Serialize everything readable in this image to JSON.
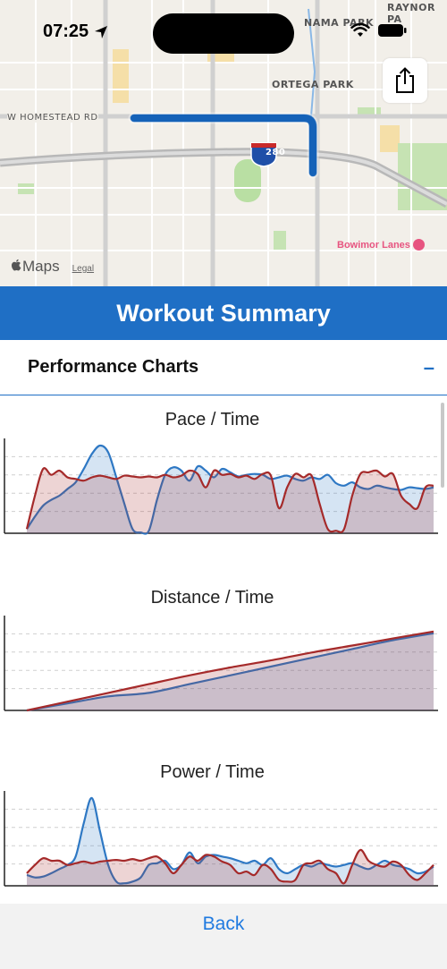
{
  "status_bar": {
    "time": "07:25"
  },
  "map": {
    "labels": {
      "raynor": "RAYNOR PA",
      "nama": "NAMA PARK",
      "ortega": "ORTEGA PARK",
      "homestead": "W HOMESTEAD RD",
      "shield": "280",
      "bowling": "Bowimor Lanes",
      "attribution": "Maps",
      "legal": "Legal"
    }
  },
  "header": {
    "title": "Workout Summary"
  },
  "section": {
    "title": "Performance Charts",
    "toggle": "–"
  },
  "colors": {
    "accent": "#1f6fc5",
    "series_blue": "#2e78c4",
    "series_red": "#a52a2a"
  },
  "footer": {
    "back_label": "Back"
  },
  "chart_data": [
    {
      "type": "area",
      "title": "Pace / Time",
      "x": [
        0,
        2,
        4,
        6,
        8,
        10,
        12,
        14,
        16,
        18,
        20,
        22,
        24,
        26,
        28,
        30,
        32,
        34,
        36,
        38,
        40,
        42,
        44,
        46,
        48,
        50,
        52,
        54,
        56,
        58,
        60,
        62,
        64,
        66,
        68,
        70,
        72,
        74,
        76,
        78,
        80,
        82,
        84,
        86,
        88,
        90,
        92,
        94,
        96,
        98,
        100
      ],
      "series": [
        {
          "color": "#2e78c4",
          "values": [
            0,
            15,
            28,
            35,
            40,
            48,
            56,
            72,
            90,
            100,
            92,
            62,
            30,
            0,
            -4,
            -2,
            35,
            65,
            74,
            70,
            58,
            75,
            70,
            62,
            72,
            68,
            63,
            65,
            66,
            65,
            60,
            62,
            64,
            60,
            58,
            62,
            60,
            65,
            55,
            52,
            56,
            50,
            48,
            52,
            50,
            48,
            47,
            50,
            49,
            48,
            50
          ]
        },
        {
          "color": "#a52a2a",
          "values": [
            0,
            40,
            72,
            65,
            70,
            62,
            60,
            58,
            62,
            64,
            62,
            60,
            64,
            63,
            62,
            63,
            62,
            65,
            62,
            64,
            70,
            66,
            50,
            70,
            65,
            66,
            62,
            64,
            60,
            66,
            64,
            25,
            50,
            66,
            62,
            64,
            30,
            0,
            -2,
            0,
            40,
            66,
            68,
            70,
            63,
            66,
            40,
            30,
            25,
            50,
            52
          ]
        }
      ],
      "ylim": [
        -5,
        100
      ]
    },
    {
      "type": "area",
      "title": "Distance / Time",
      "x": [
        0,
        10,
        20,
        30,
        40,
        50,
        60,
        70,
        80,
        90,
        100
      ],
      "series": [
        {
          "color": "#2e78c4",
          "values": [
            0,
            8,
            16,
            20,
            30,
            40,
            50,
            60,
            70,
            80,
            88
          ]
        },
        {
          "color": "#a52a2a",
          "values": [
            0,
            10,
            20,
            30,
            40,
            49,
            57,
            66,
            74,
            82,
            90
          ]
        }
      ],
      "ylim": [
        0,
        100
      ]
    },
    {
      "type": "area",
      "title": "Power / Time",
      "x": [
        0,
        2,
        4,
        6,
        8,
        10,
        12,
        14,
        16,
        18,
        20,
        22,
        24,
        26,
        28,
        30,
        32,
        34,
        36,
        38,
        40,
        42,
        44,
        46,
        48,
        50,
        52,
        54,
        56,
        58,
        60,
        62,
        64,
        66,
        68,
        70,
        72,
        74,
        76,
        78,
        80,
        82,
        84,
        86,
        88,
        90,
        92,
        94,
        96,
        98,
        100
      ],
      "series": [
        {
          "color": "#2e78c4",
          "values": [
            8,
            5,
            6,
            10,
            15,
            20,
            30,
            70,
            100,
            60,
            20,
            0,
            -2,
            0,
            5,
            20,
            22,
            25,
            15,
            20,
            35,
            22,
            30,
            32,
            30,
            28,
            25,
            22,
            25,
            20,
            28,
            15,
            10,
            15,
            20,
            18,
            22,
            20,
            18,
            20,
            22,
            18,
            15,
            20,
            25,
            20,
            18,
            15,
            10,
            12,
            18
          ]
        },
        {
          "color": "#a52a2a",
          "values": [
            10,
            20,
            28,
            25,
            25,
            20,
            22,
            24,
            22,
            24,
            25,
            26,
            25,
            27,
            25,
            28,
            30,
            22,
            10,
            20,
            30,
            25,
            32,
            30,
            24,
            20,
            10,
            12,
            8,
            20,
            15,
            2,
            0,
            2,
            20,
            22,
            25,
            15,
            10,
            -2,
            20,
            38,
            25,
            20,
            18,
            24,
            20,
            8,
            2,
            10,
            20
          ]
        }
      ],
      "ylim": [
        -5,
        100
      ]
    }
  ]
}
